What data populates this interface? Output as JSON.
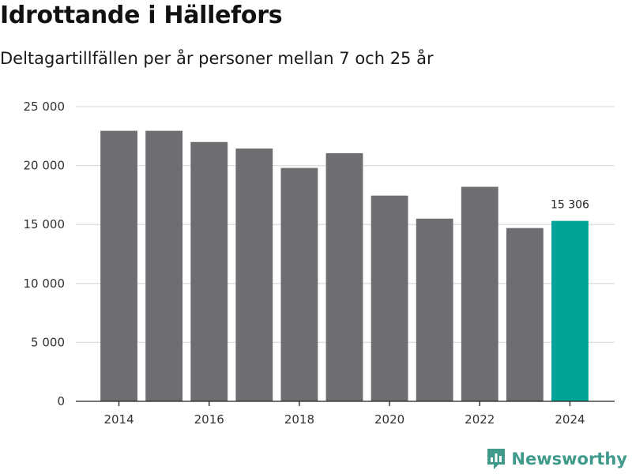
{
  "chart_data": {
    "type": "bar",
    "title": "Idrottande i Hällefors",
    "subtitle": "Deltagartillfällen per år personer mellan 7 och 25 år",
    "xlabel": "",
    "ylabel": "",
    "categories": [
      "2014",
      "2015",
      "2016",
      "2017",
      "2018",
      "2019",
      "2020",
      "2021",
      "2022",
      "2023",
      "2024"
    ],
    "values": [
      22950,
      22950,
      22000,
      21450,
      19800,
      21050,
      17450,
      15500,
      18200,
      14700,
      15306
    ],
    "ylim": [
      0,
      25000
    ],
    "y_ticks": [
      0,
      5000,
      10000,
      15000,
      20000,
      25000
    ],
    "y_tick_labels": [
      "0",
      "5 000",
      "10 000",
      "15 000",
      "20 000",
      "25 000"
    ],
    "x_tick_labels": [
      "2014",
      "2016",
      "2018",
      "2020",
      "2022",
      "2024"
    ],
    "highlight_index": 10,
    "highlight_label": "15 306",
    "grid": true
  },
  "colors": {
    "bar": "#6e6d72",
    "highlight": "#00a398",
    "grid": "#dddddd",
    "brand": "#3f9a8c"
  },
  "brand": {
    "name": "Newsworthy",
    "icon": "bar-chart-speech-bubble-icon"
  }
}
